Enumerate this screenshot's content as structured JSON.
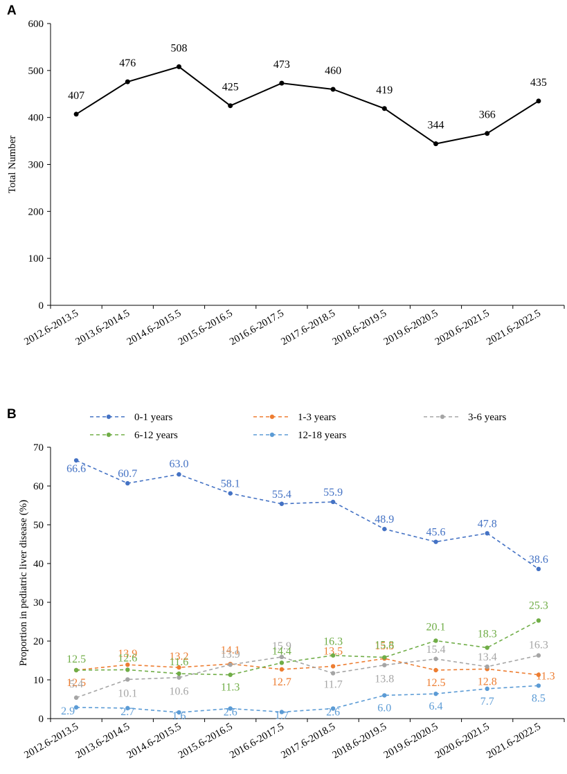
{
  "chart_data": [
    {
      "panel": "A",
      "type": "line",
      "title": "",
      "xlabel": "",
      "ylabel": "Total Number",
      "ylim": [
        0,
        600
      ],
      "yticks": [
        0,
        100,
        200,
        300,
        400,
        500,
        600
      ],
      "categories": [
        "2012.6-2013.5",
        "2013.6-2014.5",
        "2014.6-2015.5",
        "2015.6-2016.5",
        "2016.6-2017.5",
        "2017.6-2018.5",
        "2018.6-2019.5",
        "2019.6-2020.5",
        "2020.6-2021.5",
        "2021.6-2022.5"
      ],
      "series": [
        {
          "name": "Total Number",
          "color": "#000000",
          "values": [
            407,
            476,
            508,
            425,
            473,
            460,
            419,
            344,
            366,
            435
          ]
        }
      ]
    },
    {
      "panel": "B",
      "type": "line",
      "title": "",
      "xlabel": "",
      "ylabel": "Proportion in pediatric liver disease (%)",
      "ylim": [
        0,
        70
      ],
      "yticks": [
        0,
        10,
        20,
        30,
        40,
        50,
        60,
        70
      ],
      "legend": "top",
      "categories": [
        "2012.6-2013.5",
        "2013.6-2014.5",
        "2014.6-2015.5",
        "2015.6-2016.5",
        "2016.6-2017.5",
        "2017.6-2018.5",
        "2018.6-2019.5",
        "2019.6-2020.5",
        "2020.6-2021.5",
        "2021.6-2022.5"
      ],
      "series": [
        {
          "name": "0-1 years",
          "color": "#4472C4",
          "values": [
            66.6,
            60.7,
            63.0,
            58.1,
            55.4,
            55.9,
            48.9,
            45.6,
            47.8,
            38.6
          ],
          "labels": [
            "66.6",
            "60.7",
            "63.0",
            "58.1",
            "55.4",
            "55.9",
            "48.9",
            "45.6",
            "47.8",
            "38.6"
          ]
        },
        {
          "name": "1-3 years",
          "color": "#ED7D31",
          "values": [
            12.5,
            13.9,
            13.2,
            14.1,
            12.7,
            13.5,
            15.5,
            12.5,
            12.8,
            11.3
          ],
          "labels": [
            "12.5",
            "13.9",
            "13.2",
            "14.1",
            "12.7",
            "13.5",
            "15.5",
            "12.5",
            "12.8",
            "11.3"
          ]
        },
        {
          "name": "3-6 years",
          "color": "#A5A5A5",
          "values": [
            5.4,
            10.1,
            10.6,
            13.9,
            15.9,
            11.7,
            13.8,
            15.4,
            13.4,
            16.3
          ],
          "labels": [
            "5.4",
            "10.1",
            "10.6",
            "13.9",
            "15.9",
            "11.7",
            "13.8",
            "15.4",
            "13.4",
            "16.3"
          ]
        },
        {
          "name": "6-12 years",
          "color": "#70AD47",
          "values": [
            12.5,
            12.6,
            11.6,
            11.3,
            14.4,
            16.3,
            15.8,
            20.1,
            18.3,
            25.3
          ],
          "labels": [
            "12.5",
            "12.6",
            "11.6",
            "11.3",
            "14.4",
            "16.3",
            "15.8",
            "20.1",
            "18.3",
            "25.3"
          ]
        },
        {
          "name": "12-18 years",
          "color": "#5B9BD5",
          "values": [
            2.9,
            2.7,
            1.6,
            2.6,
            1.7,
            2.6,
            6.0,
            6.4,
            7.7,
            8.5
          ],
          "labels": [
            "2.9",
            "2.7",
            "1.6",
            "2.6",
            "1.7",
            "2.6",
            "6.0",
            "6.4",
            "7.7",
            "8.5"
          ]
        }
      ]
    }
  ]
}
